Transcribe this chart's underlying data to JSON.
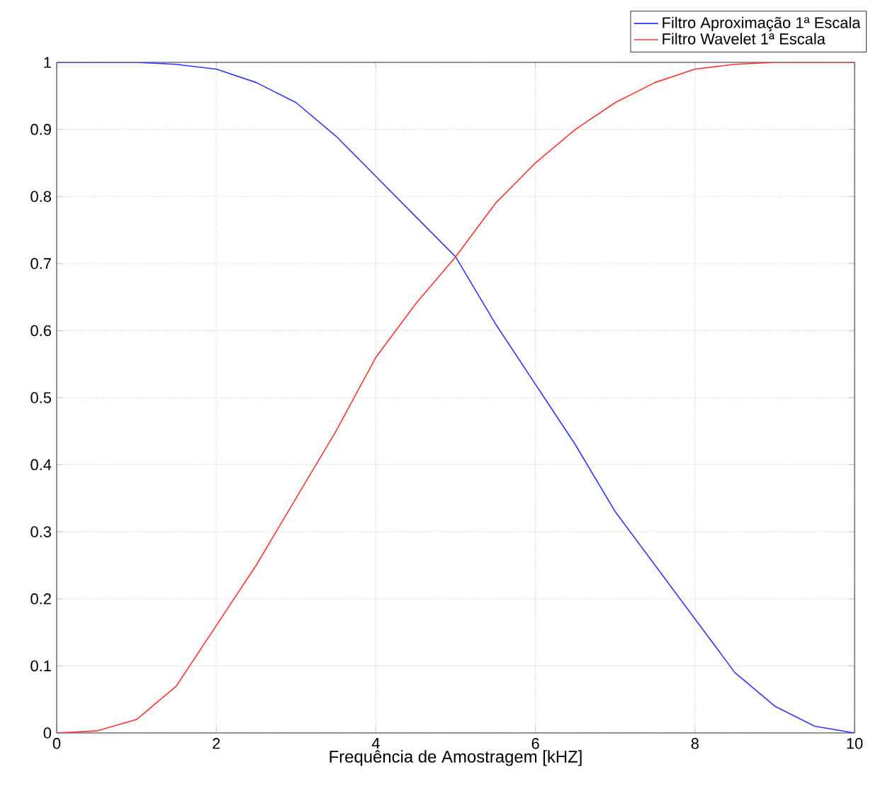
{
  "chart_data": {
    "type": "line",
    "xlabel": "Frequência de Amostragem [kHZ]",
    "x": [
      0,
      0.5,
      1,
      1.5,
      2,
      2.5,
      3,
      3.5,
      4,
      4.5,
      5,
      5.5,
      6,
      6.5,
      7,
      7.5,
      8,
      8.5,
      9,
      9.5,
      10
    ],
    "series": [
      {
        "name": "Filtro Aproximação 1ª Escala",
        "color": "#3333ff",
        "values": [
          1,
          1,
          1,
          0.997,
          0.99,
          0.97,
          0.94,
          0.89,
          0.83,
          0.77,
          0.71,
          0.61,
          0.52,
          0.43,
          0.33,
          0.25,
          0.17,
          0.09,
          0.04,
          0.01,
          0
        ]
      },
      {
        "name": "Filtro Wavelet 1ª Escala",
        "color": "#ff3333",
        "values": [
          0,
          0.003,
          0.02,
          0.07,
          0.16,
          0.25,
          0.35,
          0.45,
          0.56,
          0.64,
          0.71,
          0.79,
          0.85,
          0.9,
          0.94,
          0.97,
          0.99,
          0.997,
          1,
          1,
          1
        ]
      }
    ],
    "xlim": [
      0,
      10
    ],
    "ylim": [
      0,
      1
    ],
    "xticks": [
      0,
      2,
      4,
      6,
      8,
      10
    ],
    "yticks": [
      0,
      0.1,
      0.2,
      0.3,
      0.4,
      0.5,
      0.6,
      0.7,
      0.8,
      0.9,
      1
    ],
    "grid": true,
    "legend": "top right",
    "marker": "none",
    "line_style": "solid"
  }
}
